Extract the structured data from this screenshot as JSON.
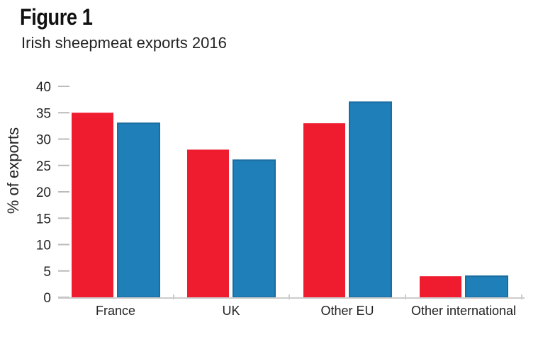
{
  "chart_data": {
    "type": "bar",
    "title": "Figure 1",
    "subtitle": "Irish sheepmeat exports 2016",
    "xlabel": "",
    "ylabel": "% of exports",
    "ylim": [
      0,
      40
    ],
    "yticks": [
      0,
      5,
      10,
      15,
      20,
      25,
      30,
      35,
      40
    ],
    "categories": [
      "France",
      "UK",
      "Other EU",
      "Other international"
    ],
    "series": [
      {
        "name": "series-red",
        "color": "#ee1c2e",
        "values": [
          35,
          28,
          33,
          4
        ]
      },
      {
        "name": "series-blue",
        "color": "#1f7fb8",
        "values": [
          33,
          26,
          37,
          4
        ]
      }
    ],
    "grid": false,
    "legend": "none"
  }
}
